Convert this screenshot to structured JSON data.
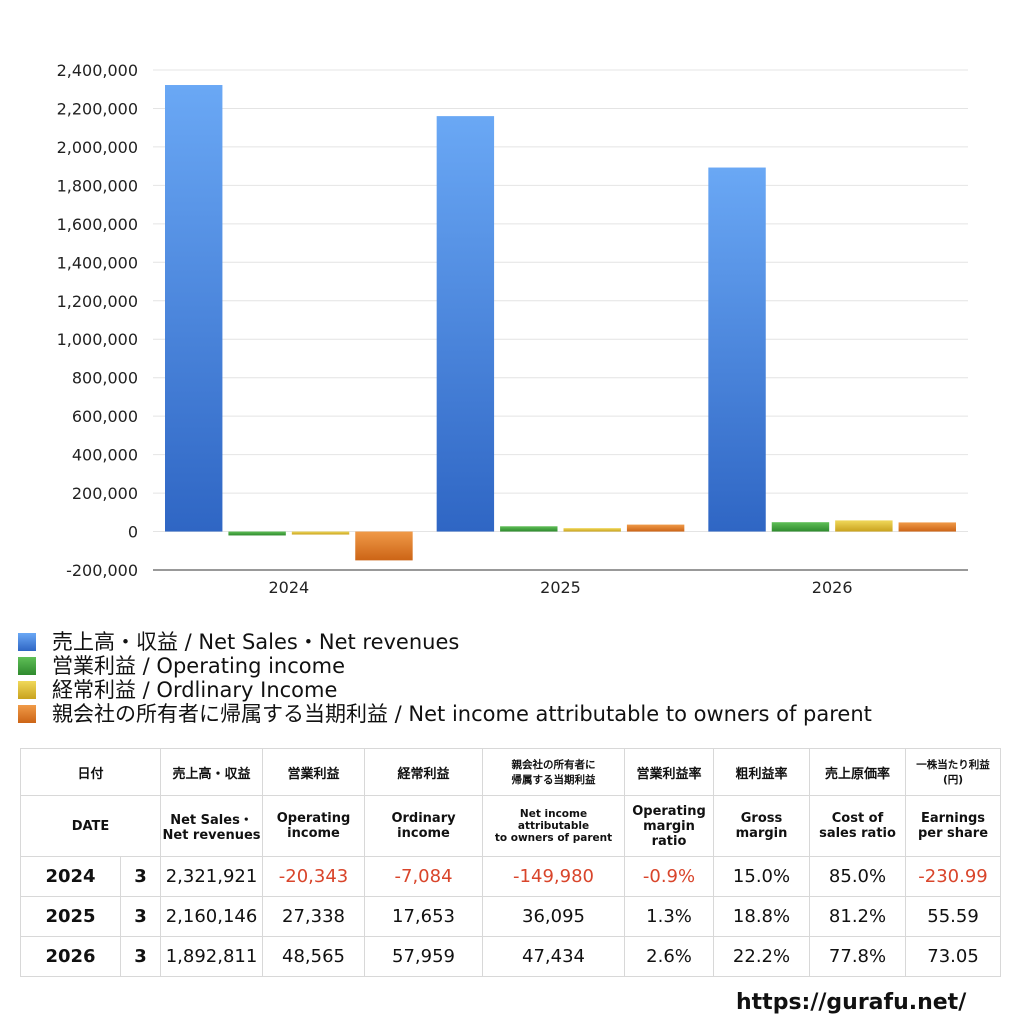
{
  "chart_data": {
    "type": "bar",
    "categories": [
      "2024",
      "2025",
      "2026"
    ],
    "ylim": [
      -200000,
      2400000
    ],
    "yticks": [
      2400000,
      2200000,
      2000000,
      1800000,
      1600000,
      1400000,
      1200000,
      1000000,
      800000,
      600000,
      400000,
      200000,
      0,
      -200000
    ],
    "ytick_labels": [
      "2,400,000",
      "2,200,000",
      "2,000,000",
      "1,800,000",
      "1,600,000",
      "1,400,000",
      "1,200,000",
      "1,000,000",
      "800,000",
      "600,000",
      "400,000",
      "200,000",
      "0",
      "-200,000"
    ],
    "grid": true,
    "legend_position": "bottom-left",
    "series": [
      {
        "name": "売上高・収益 / Net Sales・Net revenues",
        "color": "#4a8ee6",
        "values": [
          2321921,
          2160146,
          1892811
        ]
      },
      {
        "name": "営業利益 / Operating income",
        "color": "#4fa64a",
        "values": [
          -20343,
          27338,
          48565
        ]
      },
      {
        "name": "経常利益 / Ordlinary Income",
        "color": "#e0c23a",
        "values": [
          -7084,
          17653,
          57959
        ]
      },
      {
        "name": "親会社の所有者に帰属する当期利益 / Net income attributable to owners of parent",
        "color": "#e47f2e",
        "values": [
          -149980,
          36095,
          47434
        ]
      }
    ]
  },
  "table": {
    "header_jp": {
      "date": "日付",
      "sales": "売上高・収益",
      "operating": "営業利益",
      "ordinary": "経常利益",
      "net_line1": "親会社の所有者に",
      "net_line2": "帰属する当期利益",
      "op_margin": "営業利益率",
      "gross": "粗利益率",
      "cost": "売上原価率",
      "eps_line1": "一株当たり利益",
      "eps_line2": "(円)"
    },
    "header_en": {
      "date": "DATE",
      "sales_line1": "Net Sales・",
      "sales_line2": "Net revenues",
      "operating_line1": "Operating",
      "operating_line2": "income",
      "ordinary_line1": "Ordinary",
      "ordinary_line2": "income",
      "net_line1": "Net income attributable",
      "net_line2": "to owners of parent",
      "op_margin_line1": "Operating",
      "op_margin_line2": "margin",
      "op_margin_line3": "ratio",
      "gross_line1": "Gross",
      "gross_line2": "margin",
      "cost_line1": "Cost of",
      "cost_line2": "sales ratio",
      "eps_line1": "Earnings",
      "eps_line2": "per share"
    },
    "rows": [
      {
        "year": "2024",
        "month": "3",
        "sales": "2,321,921",
        "operating": "-20,343",
        "ordinary": "-7,084",
        "net": "-149,980",
        "op_margin": "-0.9%",
        "gross": "15.0%",
        "cost": "85.0%",
        "eps": "-230.99"
      },
      {
        "year": "2025",
        "month": "3",
        "sales": "2,160,146",
        "operating": "27,338",
        "ordinary": "17,653",
        "net": "36,095",
        "op_margin": "1.3%",
        "gross": "18.8%",
        "cost": "81.2%",
        "eps": "55.59"
      },
      {
        "year": "2026",
        "month": "3",
        "sales": "1,892,811",
        "operating": "48,565",
        "ordinary": "57,959",
        "net": "47,434",
        "op_margin": "2.6%",
        "gross": "22.2%",
        "cost": "77.8%",
        "eps": "73.05"
      }
    ]
  },
  "watermark": "https://gurafu.net/"
}
